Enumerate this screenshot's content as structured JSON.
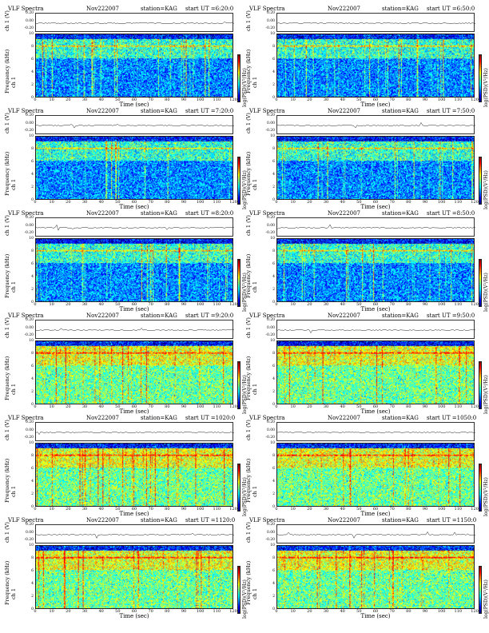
{
  "header_common": {
    "title": "VLF Spectra",
    "date": "Nov222007",
    "station": "station=KAG"
  },
  "labels": {
    "ts_ylabel": "ch 1 (V)",
    "freq_ylabel": "Frequency (kHz)",
    "freq_ylabel_prefix": "ch 1",
    "xlabel": "Time (sec)",
    "colorbar": "log(PSD)(V²/Hz)"
  },
  "colors": {
    "colormap": [
      "#00007f",
      "#0000ff",
      "#0080ff",
      "#00ffff",
      "#80ff80",
      "#ffff00",
      "#ff8000",
      "#ff0000",
      "#800000"
    ],
    "background_band": "#00c8ff"
  },
  "chart_data": [
    {
      "type": "heatmap",
      "start": "start UT =6:20:0",
      "x_ticks": [
        "0",
        "10",
        "20",
        "30",
        "40",
        "50",
        "60",
        "70",
        "80",
        "90",
        "100",
        "110",
        "120"
      ],
      "xlim": [
        0,
        120
      ],
      "ylim": [
        0,
        10
      ],
      "y_ticks": [
        "0",
        "2",
        "4",
        "6",
        "8",
        "10"
      ],
      "ts_ticks": [
        "0.20",
        "0.00",
        "-0.20"
      ]
    },
    {
      "type": "heatmap",
      "start": "start UT =6:50:0",
      "x_ticks": [
        "0",
        "10",
        "20",
        "30",
        "40",
        "50",
        "60",
        "70",
        "80",
        "90",
        "100",
        "110",
        "120"
      ],
      "xlim": [
        0,
        120
      ],
      "ylim": [
        0,
        10
      ],
      "y_ticks": [
        "0",
        "2",
        "4",
        "6",
        "8",
        "10"
      ],
      "ts_ticks": [
        "0.20",
        "0.00",
        "-0.20"
      ]
    },
    {
      "type": "heatmap",
      "start": "start UT =7:20:0",
      "x_ticks": [
        "0",
        "10",
        "20",
        "30",
        "40",
        "50",
        "60",
        "70",
        "80",
        "90",
        "100",
        "110",
        "120"
      ],
      "xlim": [
        0,
        120
      ],
      "ylim": [
        0,
        10
      ],
      "y_ticks": [
        "0",
        "2",
        "4",
        "6",
        "8",
        "10"
      ],
      "ts_ticks": [
        "0.20",
        "0.00",
        "-0.20"
      ]
    },
    {
      "type": "heatmap",
      "start": "start UT =7:50:0",
      "x_ticks": [
        "0",
        "10",
        "20",
        "30",
        "40",
        "50",
        "60",
        "70",
        "80",
        "90",
        "100",
        "110",
        "120"
      ],
      "xlim": [
        0,
        120
      ],
      "ylim": [
        0,
        10
      ],
      "y_ticks": [
        "0",
        "2",
        "4",
        "6",
        "8",
        "10"
      ],
      "ts_ticks": [
        "0.20",
        "0.00",
        "-0.20"
      ]
    },
    {
      "type": "heatmap",
      "start": "start UT =8:20:0",
      "x_ticks": [
        "0",
        "10",
        "20",
        "30",
        "40",
        "50",
        "60",
        "70",
        "80",
        "90",
        "100",
        "110",
        "120"
      ],
      "xlim": [
        0,
        120
      ],
      "ylim": [
        0,
        10
      ],
      "y_ticks": [
        "0",
        "2",
        "4",
        "6",
        "8",
        "10"
      ],
      "ts_ticks": [
        "0.20",
        "0.00",
        "-0.20"
      ]
    },
    {
      "type": "heatmap",
      "start": "start UT =8:50:0",
      "x_ticks": [
        "0",
        "10",
        "20",
        "30",
        "40",
        "50",
        "60",
        "70",
        "80",
        "90",
        "100",
        "110",
        "120"
      ],
      "xlim": [
        0,
        120
      ],
      "ylim": [
        0,
        10
      ],
      "y_ticks": [
        "0",
        "2",
        "4",
        "6",
        "8",
        "10"
      ],
      "ts_ticks": [
        "0.20",
        "0.00",
        "-0.20"
      ]
    },
    {
      "type": "heatmap",
      "start": "start UT =9:20:0",
      "x_ticks": [
        "0",
        "10",
        "20",
        "30",
        "40",
        "50",
        "60",
        "70",
        "80",
        "90",
        "100",
        "110",
        "120"
      ],
      "xlim": [
        0,
        120
      ],
      "ylim": [
        0,
        10
      ],
      "y_ticks": [
        "0",
        "2",
        "4",
        "6",
        "8",
        "10"
      ],
      "ts_ticks": [
        "0.20",
        "0.00",
        "-0.20"
      ]
    },
    {
      "type": "heatmap",
      "start": "start UT =9:50:0",
      "x_ticks": [
        "0",
        "10",
        "20",
        "30",
        "40",
        "50",
        "60",
        "70",
        "80",
        "90",
        "100",
        "110",
        "120"
      ],
      "xlim": [
        0,
        120
      ],
      "ylim": [
        0,
        10
      ],
      "y_ticks": [
        "0",
        "2",
        "4",
        "6",
        "8",
        "10"
      ],
      "ts_ticks": [
        "0.20",
        "0.00",
        "-0.20"
      ]
    },
    {
      "type": "heatmap",
      "start": "start UT =1020:0",
      "x_ticks": [
        "0",
        "10",
        "20",
        "30",
        "40",
        "50",
        "60",
        "70",
        "80",
        "90",
        "100",
        "110",
        "120"
      ],
      "xlim": [
        0,
        120
      ],
      "ylim": [
        0,
        10
      ],
      "y_ticks": [
        "0",
        "2",
        "4",
        "6",
        "8",
        "10"
      ],
      "ts_ticks": [
        "0.20",
        "0.00",
        "-0.20"
      ]
    },
    {
      "type": "heatmap",
      "start": "start UT =1050:0",
      "x_ticks": [
        "0",
        "10",
        "20",
        "30",
        "40",
        "50",
        "60",
        "70",
        "80",
        "90",
        "100",
        "110",
        "120"
      ],
      "xlim": [
        0,
        120
      ],
      "ylim": [
        0,
        10
      ],
      "y_ticks": [
        "0",
        "2",
        "4",
        "6",
        "8",
        "10"
      ],
      "ts_ticks": [
        "0.20",
        "0.00",
        "-0.20"
      ]
    },
    {
      "type": "heatmap",
      "start": "start UT =1120:0",
      "x_ticks": [
        "0",
        "10",
        "20",
        "30",
        "40",
        "50",
        "60",
        "70",
        "80",
        "90",
        "100",
        "110",
        "120"
      ],
      "xlim": [
        0,
        120
      ],
      "ylim": [
        0,
        10
      ],
      "y_ticks": [
        "0",
        "2",
        "4",
        "6",
        "8",
        "10"
      ],
      "ts_ticks": [
        "0.20",
        "0.00",
        "-0.20"
      ]
    },
    {
      "type": "heatmap",
      "start": "start UT =1150:0",
      "x_ticks": [
        "0",
        "10",
        "20",
        "30",
        "40",
        "50",
        "60",
        "70",
        "80",
        "90",
        "100",
        "110",
        "120"
      ],
      "xlim": [
        0,
        120
      ],
      "ylim": [
        0,
        10
      ],
      "y_ticks": [
        "0",
        "2",
        "4",
        "6",
        "8",
        "10"
      ],
      "ts_ticks": [
        "0.20",
        "0.00",
        "-0.20"
      ]
    }
  ]
}
